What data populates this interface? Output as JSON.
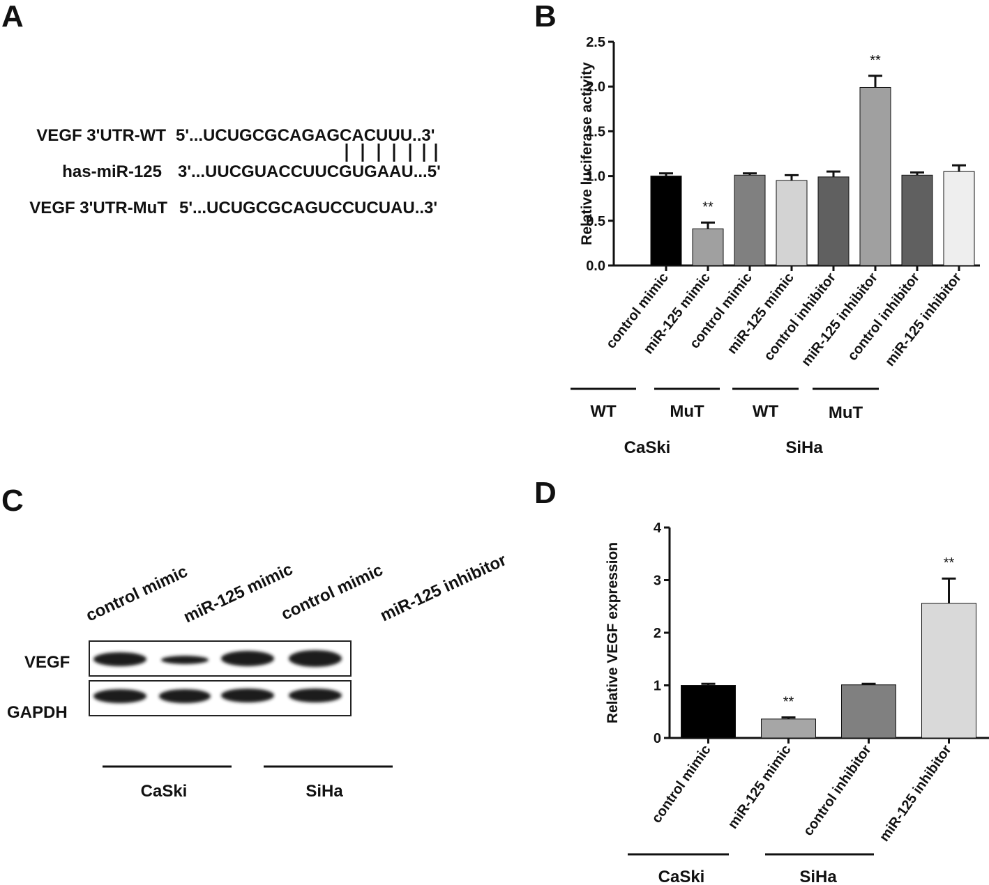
{
  "panel_labels": [
    "A",
    "B",
    "C",
    "D"
  ],
  "sequence_alignment": {
    "rows": [
      {
        "name": "VEGF 3'UTR-WT",
        "sequence": "5'...UCUGCGCAGAGCACUUU..3'"
      },
      {
        "name": "has-miR-125",
        "sequence": "3'...UUCGUACCUUCGUGAAU...5'"
      },
      {
        "name": "VEGF 3'UTR-MuT",
        "sequence": "5'...UCUGCGCAGUCCUCUAU..3'"
      }
    ]
  },
  "western_blot": {
    "lane_labels": [
      "control mimic",
      "miR-125 mimic",
      "control mimic",
      "miR-125 inhibitor"
    ],
    "row_labels": [
      "VEGF",
      "GAPDH"
    ],
    "group_labels": [
      "CaSki",
      "SiHa"
    ]
  },
  "chart_data": [
    {
      "type": "bar",
      "y_label": "Relative luciferase activity",
      "categories": [
        "control mimic",
        "miR-125 mimic",
        "control mimic",
        "miR-125 mimic",
        "control inhibitor",
        "miR-125 inhibitor",
        "control inhibitor",
        "miR-125 inhibitor"
      ],
      "values": [
        1.0,
        0.41,
        1.01,
        0.95,
        0.99,
        1.99,
        1.01,
        1.05
      ],
      "errors": [
        0.03,
        0.07,
        0.02,
        0.06,
        0.06,
        0.13,
        0.03,
        0.07
      ],
      "colors": [
        "#000000",
        "#a0a0a0",
        "#808080",
        "#d3d3d3",
        "#606060",
        "#a0a0a0",
        "#606060",
        "#eeeeee"
      ],
      "significance": [
        null,
        "**",
        null,
        null,
        null,
        "**",
        null,
        null
      ],
      "group_labels": [
        "WT",
        "MuT",
        "WT",
        "MuT"
      ],
      "cell_labels": [
        "CaSki",
        "SiHa"
      ],
      "ylim": [
        0,
        2.5
      ],
      "yticks": [
        {
          "value": 0,
          "label": "0.0"
        },
        0.5,
        {
          "value": 1,
          "label": "1.0"
        },
        1.5,
        {
          "value": 2,
          "label": "2.0"
        },
        2.5
      ]
    },
    {
      "type": "bar",
      "y_label": "Relative VEGF expression",
      "categories": [
        "control mimic",
        "miR-125 mimic",
        "control inhibitor",
        "miR-125 inhibitor"
      ],
      "values": [
        1.0,
        0.36,
        1.01,
        2.56
      ],
      "errors": [
        0.03,
        0.03,
        0.02,
        0.47
      ],
      "colors": [
        "#000000",
        "#a6a6a6",
        "#808080",
        "#d9d9d9"
      ],
      "significance": [
        null,
        "**",
        null,
        "**"
      ],
      "cell_labels": [
        "CaSki",
        "SiHa"
      ],
      "ylim": [
        0,
        4
      ],
      "yticks": [
        0,
        1,
        2,
        3,
        4
      ]
    }
  ]
}
